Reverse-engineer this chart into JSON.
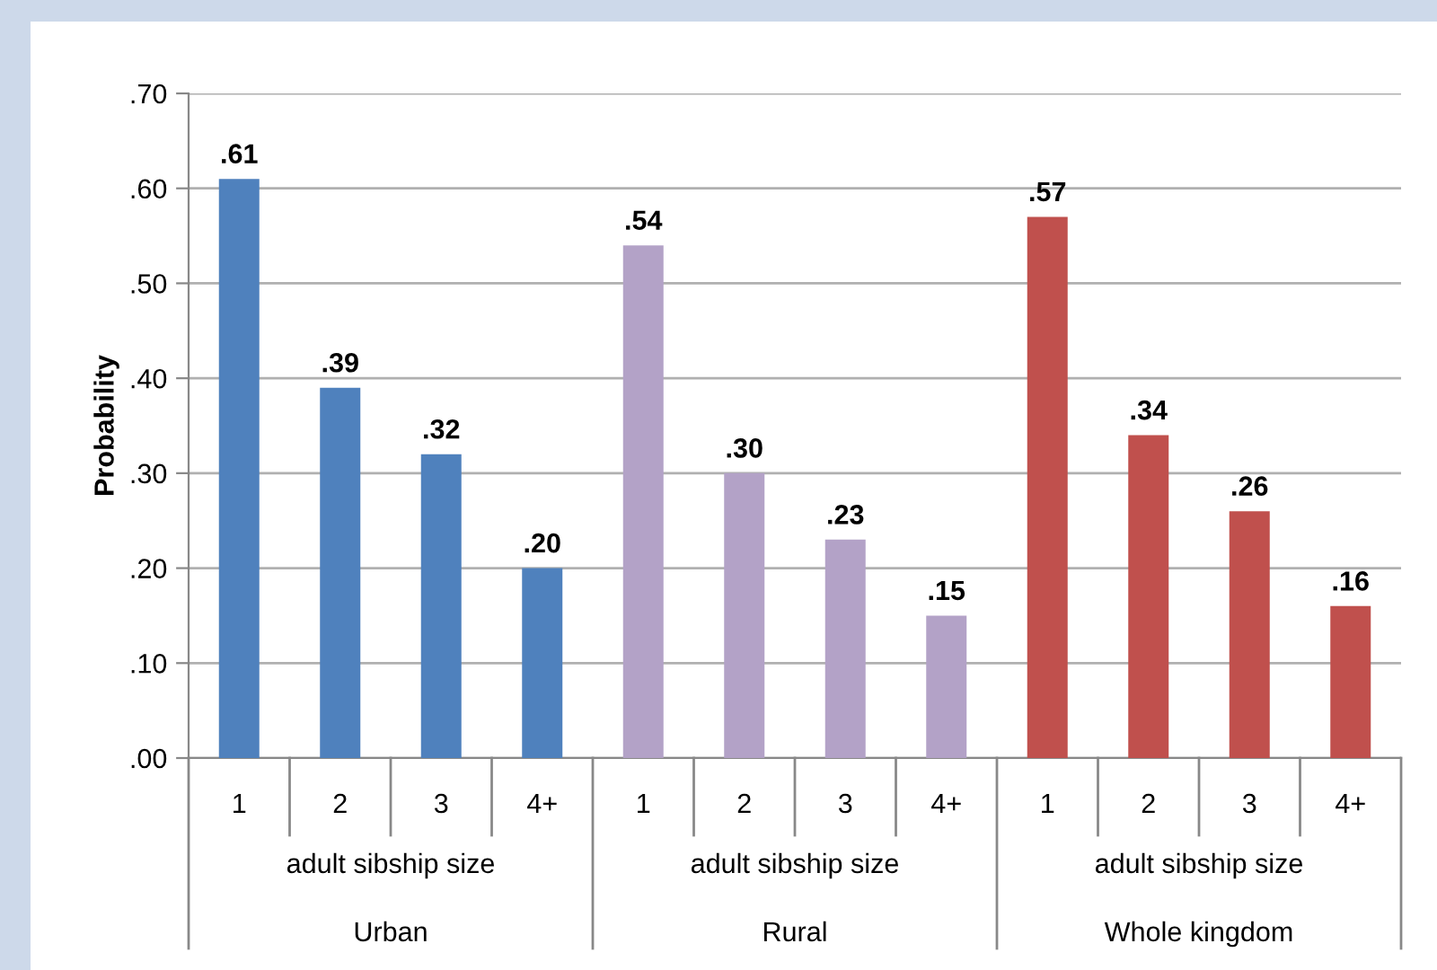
{
  "chart_data": {
    "type": "bar",
    "ylabel": "Probability",
    "categories": [
      "1",
      "2",
      "3",
      "4+",
      "1",
      "2",
      "3",
      "4+",
      "1",
      "2",
      "3",
      "4+"
    ],
    "values": [
      0.61,
      0.39,
      0.32,
      0.2,
      0.54,
      0.3,
      0.23,
      0.15,
      0.57,
      0.34,
      0.26,
      0.16
    ],
    "value_labels": [
      ".61",
      ".39",
      ".32",
      ".20",
      ".54",
      ".30",
      ".23",
      ".15",
      ".57",
      ".34",
      ".26",
      ".16"
    ],
    "colors": [
      "#4f81bd",
      "#4f81bd",
      "#4f81bd",
      "#4f81bd",
      "#b3a2c7",
      "#b3a2c7",
      "#b3a2c7",
      "#b3a2c7",
      "#c0504d",
      "#c0504d",
      "#c0504d",
      "#c0504d"
    ],
    "ylim": [
      0,
      0.7
    ],
    "yticks": [
      {
        "value": 0,
        "label": ".00"
      },
      {
        "value": 0.1,
        "label": ".10"
      },
      {
        "value": 0.2,
        "label": ".20"
      },
      {
        "value": 0.3,
        "label": ".30"
      },
      {
        "value": 0.4,
        "label": ".40"
      },
      {
        "value": 0.5,
        "label": ".50"
      },
      {
        "value": 0.6,
        "label": ".60"
      },
      {
        "value": 0.7,
        "label": ".70"
      }
    ],
    "grid": "y",
    "annotations": [
      "adult sibship size",
      "adult sibship size",
      "adult sibship size",
      "Urban",
      "Rural",
      "Whole kingdom"
    ]
  }
}
